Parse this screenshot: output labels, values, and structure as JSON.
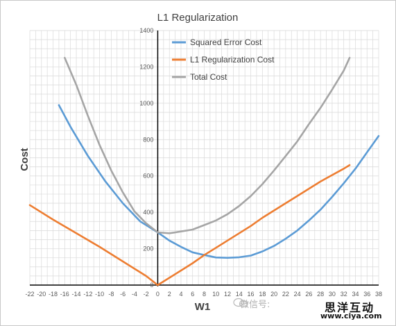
{
  "chart_data": {
    "type": "line",
    "title": "L1 Regularization",
    "xlabel": "W1",
    "ylabel": "Cost",
    "xlim": [
      -22,
      38
    ],
    "ylim": [
      0,
      1400
    ],
    "x_ticks": [
      -22,
      -20,
      -18,
      -16,
      -14,
      -12,
      -10,
      -8,
      -6,
      -4,
      -2,
      0,
      2,
      4,
      6,
      8,
      10,
      12,
      14,
      16,
      18,
      20,
      22,
      24,
      26,
      28,
      30,
      32,
      34,
      36,
      38
    ],
    "y_ticks": [
      0,
      200,
      400,
      600,
      800,
      1000,
      1200,
      1400
    ],
    "grid": true,
    "legend_position": "top-center",
    "series": [
      {
        "name": "Squared Error Cost",
        "color": "#5b9bd5",
        "points": [
          [
            -17,
            990
          ],
          [
            -15,
            870
          ],
          [
            -12,
            710
          ],
          [
            -9,
            570
          ],
          [
            -6,
            450
          ],
          [
            -3,
            350
          ],
          [
            0,
            290
          ],
          [
            2,
            245
          ],
          [
            4,
            210
          ],
          [
            6,
            180
          ],
          [
            8,
            165
          ],
          [
            10,
            152
          ],
          [
            12,
            150
          ],
          [
            14,
            153
          ],
          [
            16,
            162
          ],
          [
            18,
            185
          ],
          [
            20,
            215
          ],
          [
            22,
            255
          ],
          [
            24,
            300
          ],
          [
            26,
            355
          ],
          [
            28,
            415
          ],
          [
            30,
            485
          ],
          [
            32,
            560
          ],
          [
            34,
            640
          ],
          [
            36,
            730
          ],
          [
            38,
            820
          ]
        ]
      },
      {
        "name": "L1 Regularization Cost",
        "color": "#ed7d31",
        "points": [
          [
            -22,
            440
          ],
          [
            -18,
            360
          ],
          [
            -14,
            285
          ],
          [
            -10,
            210
          ],
          [
            -6,
            130
          ],
          [
            -2,
            50
          ],
          [
            0,
            0
          ],
          [
            2,
            40
          ],
          [
            4,
            80
          ],
          [
            6,
            120
          ],
          [
            8,
            165
          ],
          [
            10,
            205
          ],
          [
            12,
            245
          ],
          [
            14,
            285
          ],
          [
            16,
            325
          ],
          [
            18,
            370
          ],
          [
            20,
            410
          ],
          [
            22,
            450
          ],
          [
            24,
            490
          ],
          [
            26,
            530
          ],
          [
            28,
            570
          ],
          [
            30,
            605
          ],
          [
            32,
            640
          ],
          [
            33,
            660
          ]
        ]
      },
      {
        "name": "Total Cost",
        "color": "#a5a5a5",
        "points": [
          [
            -16,
            1250
          ],
          [
            -14,
            1100
          ],
          [
            -12,
            930
          ],
          [
            -10,
            770
          ],
          [
            -8,
            630
          ],
          [
            -6,
            510
          ],
          [
            -4,
            405
          ],
          [
            -2,
            340
          ],
          [
            0,
            290
          ],
          [
            2,
            285
          ],
          [
            4,
            295
          ],
          [
            6,
            305
          ],
          [
            8,
            330
          ],
          [
            10,
            355
          ],
          [
            12,
            390
          ],
          [
            14,
            435
          ],
          [
            16,
            490
          ],
          [
            18,
            555
          ],
          [
            20,
            630
          ],
          [
            22,
            710
          ],
          [
            24,
            790
          ],
          [
            26,
            885
          ],
          [
            28,
            975
          ],
          [
            30,
            1075
          ],
          [
            32,
            1180
          ],
          [
            33,
            1250
          ]
        ]
      }
    ]
  },
  "watermark": {
    "chinese_name": "思洋互动",
    "url": "www.ciya.com",
    "wechat_label": "微信号:"
  }
}
